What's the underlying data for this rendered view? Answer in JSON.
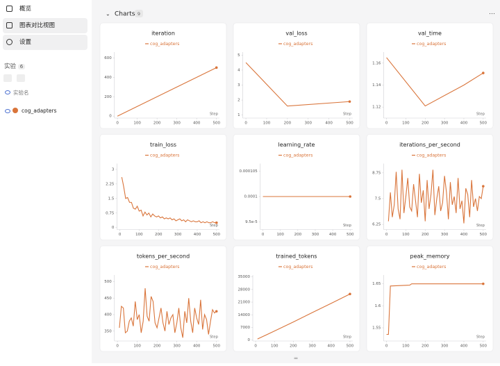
{
  "sidebar": {
    "nav": [
      "概览",
      "图表对比视图",
      "设置"
    ],
    "section": "实验",
    "count": "6",
    "search_placeholder": "实验名",
    "run": "cog_adapters"
  },
  "header": {
    "title": "Charts",
    "count": "9"
  },
  "chart_data": [
    {
      "type": "line",
      "title": "iteration",
      "x_label": "Step",
      "x": [
        0,
        500
      ],
      "series": [
        {
          "name": "cog_adapters",
          "color": "#d9743a",
          "values": [
            0,
            500
          ]
        }
      ],
      "xlim": [
        -15,
        515
      ],
      "xticks": [
        0,
        100,
        200,
        300,
        400,
        500
      ],
      "ylim": [
        -20,
        660
      ],
      "yticks": [
        0,
        200,
        400,
        600
      ],
      "end_marker": true
    },
    {
      "type": "line",
      "title": "val_loss",
      "x_label": "Step",
      "x": [
        0,
        200,
        500
      ],
      "series": [
        {
          "name": "cog_adapters",
          "color": "#d9743a",
          "values": [
            4.5,
            1.6,
            1.9
          ]
        }
      ],
      "xlim": [
        -15,
        515
      ],
      "xticks": [
        0,
        100,
        200,
        300,
        400,
        500
      ],
      "ylim": [
        0.8,
        5.2
      ],
      "yticks": [
        1,
        2,
        3,
        4,
        5
      ],
      "end_marker": true
    },
    {
      "type": "line",
      "title": "val_time",
      "x_label": "Step",
      "x": [
        0,
        200,
        400,
        500
      ],
      "series": [
        {
          "name": "cog_adapters",
          "color": "#d9743a",
          "values": [
            1.165,
            1.121,
            1.14,
            1.151
          ]
        }
      ],
      "xlim": [
        -15,
        515
      ],
      "xticks": [
        0,
        100,
        200,
        300,
        400,
        500
      ],
      "ylim": [
        1.11,
        1.17
      ],
      "yticks": [
        1.12,
        1.14,
        1.16
      ],
      "end_marker": true
    },
    {
      "type": "line",
      "title": "train_loss",
      "x_label": "Step",
      "x": [
        10,
        20,
        30,
        40,
        50,
        60,
        70,
        80,
        90,
        100,
        110,
        120,
        130,
        140,
        150,
        160,
        170,
        180,
        190,
        200,
        210,
        220,
        230,
        240,
        250,
        260,
        270,
        280,
        290,
        300,
        310,
        320,
        330,
        340,
        350,
        360,
        370,
        380,
        390,
        400,
        410,
        420,
        430,
        440,
        450,
        460,
        470,
        480,
        490,
        500
      ],
      "series": [
        {
          "name": "cog_adapters",
          "color": "#d9743a",
          "values": [
            2.6,
            2.1,
            1.5,
            1.55,
            1.3,
            1.3,
            1.0,
            0.95,
            1.1,
            0.85,
            0.9,
            0.6,
            0.8,
            0.65,
            0.75,
            0.55,
            0.7,
            0.6,
            0.55,
            0.6,
            0.5,
            0.55,
            0.45,
            0.5,
            0.45,
            0.5,
            0.4,
            0.45,
            0.35,
            0.4,
            0.45,
            0.35,
            0.4,
            0.3,
            0.4,
            0.35,
            0.3,
            0.35,
            0.3,
            0.3,
            0.35,
            0.25,
            0.3,
            0.25,
            0.3,
            0.25,
            0.25,
            0.3,
            0.25,
            0.25
          ]
        }
      ],
      "xlim": [
        -15,
        515
      ],
      "xticks": [
        0,
        100,
        200,
        300,
        400,
        500
      ],
      "ylim": [
        -0.1,
        3.3
      ],
      "yticks": [
        0,
        0.75,
        1.5,
        2.25,
        3
      ],
      "end_marker": true
    },
    {
      "type": "line",
      "title": "learning_rate",
      "x_label": "Step",
      "x": [
        0,
        500
      ],
      "series": [
        {
          "name": "cog_adapters",
          "color": "#d9743a",
          "values": [
            0.0001,
            0.0001
          ]
        }
      ],
      "xlim": [
        -15,
        515
      ],
      "xticks": [
        0,
        100,
        200,
        300,
        400,
        500
      ],
      "ylim": [
        9.35e-05,
        0.0001065
      ],
      "yticks": [
        {
          "value": 9.5e-05,
          "label": "9.5e-5"
        },
        0.0001,
        0.000105
      ],
      "end_marker": true
    },
    {
      "type": "line",
      "title": "iterations_per_second",
      "x_label": "Step",
      "x": [
        10,
        20,
        30,
        40,
        50,
        60,
        70,
        80,
        90,
        100,
        110,
        120,
        130,
        140,
        150,
        160,
        170,
        180,
        190,
        200,
        210,
        220,
        230,
        240,
        250,
        260,
        270,
        280,
        290,
        300,
        310,
        320,
        330,
        340,
        350,
        360,
        370,
        380,
        390,
        400,
        410,
        420,
        430,
        440,
        450,
        460,
        470,
        480,
        490,
        500
      ],
      "series": [
        {
          "name": "cog_adapters",
          "color": "#d9743a",
          "values": [
            6.4,
            7.8,
            6.6,
            7.2,
            8.8,
            7.0,
            6.5,
            8.9,
            6.8,
            7.6,
            8.5,
            7.1,
            6.9,
            8.2,
            7.4,
            6.6,
            8.7,
            7.3,
            7.9,
            6.4,
            8.4,
            7.0,
            7.7,
            8.9,
            6.7,
            7.5,
            8.1,
            6.9,
            7.3,
            8.6,
            7.8,
            6.5,
            8.3,
            7.2,
            7.6,
            6.8,
            8.5,
            7.0,
            7.4,
            6.3,
            8.0,
            7.7,
            6.6,
            8.4,
            7.1,
            7.5,
            6.9,
            7.6,
            7.5,
            8.1
          ]
        }
      ],
      "xlim": [
        -15,
        515
      ],
      "xticks": [
        0,
        100,
        200,
        300,
        400,
        500
      ],
      "ylim": [
        6.0,
        9.2
      ],
      "yticks": [
        6.25,
        7.5,
        8.75
      ],
      "end_marker": true
    },
    {
      "type": "line",
      "title": "tokens_per_second",
      "x_label": "Step",
      "x": [
        10,
        20,
        30,
        40,
        50,
        60,
        70,
        80,
        90,
        100,
        110,
        120,
        130,
        140,
        150,
        160,
        170,
        180,
        190,
        200,
        210,
        220,
        230,
        240,
        250,
        260,
        270,
        280,
        290,
        300,
        310,
        320,
        330,
        340,
        350,
        360,
        370,
        380,
        390,
        400,
        410,
        420,
        430,
        440,
        450,
        460,
        470,
        480,
        490,
        500
      ],
      "series": [
        {
          "name": "cog_adapters",
          "color": "#d9743a",
          "values": [
            360,
            425,
            420,
            345,
            350,
            380,
            390,
            365,
            440,
            385,
            400,
            345,
            380,
            480,
            395,
            380,
            455,
            440,
            375,
            360,
            390,
            420,
            375,
            350,
            410,
            370,
            390,
            400,
            345,
            375,
            420,
            360,
            330,
            410,
            375,
            450,
            380,
            345,
            420,
            390,
            370,
            445,
            355,
            400,
            385,
            340,
            380,
            415,
            405,
            410
          ]
        }
      ],
      "xlim": [
        -15,
        515
      ],
      "xticks": [
        0,
        100,
        200,
        300,
        400,
        500
      ],
      "ylim": [
        320,
        520
      ],
      "yticks": [
        350,
        400,
        450,
        500
      ],
      "end_marker": true
    },
    {
      "type": "line",
      "title": "trained_tokens",
      "x_label": "Step",
      "x": [
        10,
        100,
        200,
        300,
        400,
        500
      ],
      "series": [
        {
          "name": "cog_adapters",
          "color": "#d9743a",
          "values": [
            600,
            5000,
            10000,
            15200,
            20300,
            25500
          ]
        }
      ],
      "xlim": [
        -15,
        515
      ],
      "xticks": [
        0,
        100,
        200,
        300,
        400,
        500
      ],
      "ylim": [
        -500,
        36000
      ],
      "yticks": [
        0,
        7000,
        14000,
        21000,
        28000,
        35000
      ],
      "end_marker": true
    },
    {
      "type": "line",
      "title": "peak_memory",
      "x_label": "Step",
      "x": [
        0,
        10,
        20,
        120,
        130,
        500
      ],
      "series": [
        {
          "name": "cog_adapters",
          "color": "#d9743a",
          "values": [
            1.535,
            1.535,
            1.645,
            1.647,
            1.65,
            1.65
          ]
        }
      ],
      "xlim": [
        -15,
        515
      ],
      "xticks": [
        0,
        100,
        200,
        300,
        400,
        500
      ],
      "ylim": [
        1.52,
        1.67
      ],
      "yticks": [
        1.55,
        1.6,
        1.65
      ],
      "end_marker": true
    }
  ]
}
